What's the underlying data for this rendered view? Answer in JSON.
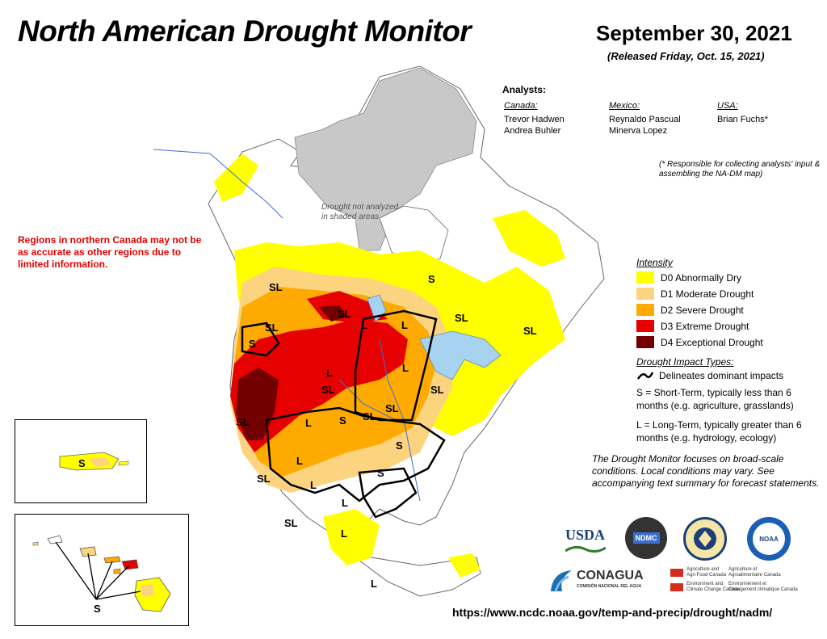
{
  "title": "North American Drought Monitor",
  "date": "September 30, 2021",
  "released": "(Released Friday, Oct. 15, 2021)",
  "analysts": {
    "heading": "Analysts:",
    "canada": {
      "label": "Canada:",
      "names": [
        "Trevor Hadwen",
        "Andrea Buhler"
      ]
    },
    "mexico": {
      "label": "Mexico:",
      "names": [
        "Reynaldo Pascual",
        "Minerva Lopez"
      ]
    },
    "usa": {
      "label": "USA:",
      "names": [
        "Brian Fuchs*"
      ]
    },
    "footnote": "(* Responsible for collecting analysts' input & assembling the NA-DM map)"
  },
  "warning": "Regions in northern Canada may not be as accurate as other regions due to limited information.",
  "gray_note": [
    "Drought not analyzed",
    "in shaded areas"
  ],
  "legend": {
    "intensity_title": "Intensity",
    "levels": [
      {
        "label": "D0 Abnormally Dry",
        "color": "#ffff00"
      },
      {
        "label": "D1 Moderate Drought",
        "color": "#fcd37f"
      },
      {
        "label": "D2 Severe Drought",
        "color": "#ffaa00"
      },
      {
        "label": "D3 Extreme Drought",
        "color": "#e60000"
      },
      {
        "label": "D4 Exceptional Drought",
        "color": "#730000"
      }
    ],
    "impact_title": "Drought Impact Types:",
    "impact_line": "Delineates dominant impacts",
    "impact_s": "S = Short-Term, typically less than 6 months (e.g. agriculture, grasslands)",
    "impact_l": "L = Long-Term, typically greater than 6 months (e.g. hydrology, ecology)"
  },
  "disclaimer": "The Drought Monitor focuses on broad-scale conditions. Local conditions may vary. See accompanying text summary for forecast statements.",
  "map_labels": [
    "SL",
    "S",
    "SL",
    "SL",
    "L",
    "SL",
    "S",
    "L",
    "SL",
    "L",
    "L",
    "SL",
    "SL",
    "SL",
    "SL",
    "S",
    "SL",
    "L",
    "L",
    "S",
    "S",
    "L",
    "SL",
    "L",
    "SL",
    "L",
    "L"
  ],
  "inset_labels": {
    "puerto_rico": "S",
    "hawaii": "S"
  },
  "logos": {
    "usda": "USDA",
    "ndmc": "NDMC",
    "noaa": "NOAA",
    "conagua": "CONAGUA",
    "conagua_sub": "COMISIÓN NACIONAL DEL AGUA",
    "agr_canada_en": [
      "Agriculture and",
      "Agri-Food Canada"
    ],
    "agr_canada_fr": [
      "Agriculture et",
      "Agroalimentaire Canada"
    ],
    "env_canada_en": [
      "Environment and",
      "Climate Change Canada"
    ],
    "env_canada_fr": [
      "Environnement et",
      "Changement climatique Canada"
    ]
  },
  "url": "https://www.ncdc.noaa.gov/temp-and-precip/drought/nadm/",
  "colors": {
    "gray_area": "#c8c8c8",
    "water": "#a8d3f0",
    "land": "#ffffff",
    "warning": "#e00000"
  }
}
